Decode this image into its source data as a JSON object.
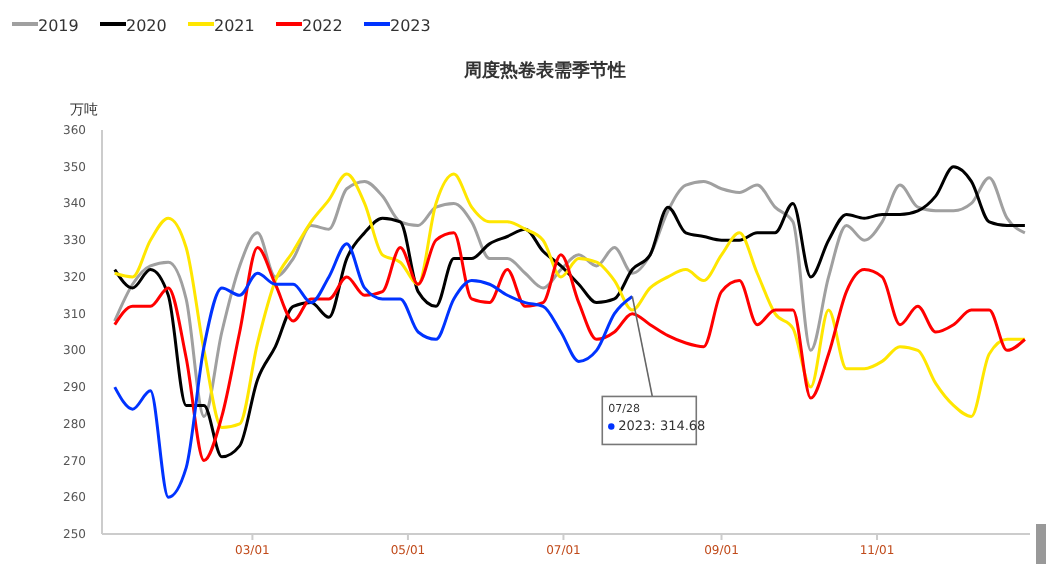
{
  "chart_data": {
    "type": "line",
    "title": "周度热卷表需季节性",
    "ylabel": "万吨",
    "x": [
      "--01-06",
      "--01-13",
      "--01-20",
      "--01-27",
      "--02-03",
      "--02-10",
      "--02-17",
      "--02-24",
      "--03-03",
      "--03-10",
      "--03-17",
      "--03-24",
      "--03-31",
      "--04-07",
      "--04-14",
      "--04-21",
      "--04-28",
      "--05-05",
      "--05-12",
      "--05-19",
      "--05-26",
      "--06-02",
      "--06-09",
      "--06-16",
      "--06-23",
      "--06-30",
      "--07-07",
      "--07-14",
      "--07-21",
      "--07-28",
      "--08-04",
      "--08-11",
      "--08-18",
      "--08-25",
      "--09-01",
      "--09-08",
      "--09-15",
      "--09-22",
      "--09-29",
      "--10-06",
      "--10-13",
      "--10-20",
      "--10-27",
      "--11-03",
      "--11-10",
      "--11-17",
      "--11-24",
      "--12-01",
      "--12-08",
      "--12-15",
      "--12-22",
      "--12-29"
    ],
    "xlim": [
      "--01-01",
      "--12-31"
    ],
    "xticks": [
      {
        "value": "--03-01",
        "label": "03/01"
      },
      {
        "value": "--05-01",
        "label": "05/01"
      },
      {
        "value": "--07-01",
        "label": "07/01"
      },
      {
        "value": "--09-01",
        "label": "09/01"
      },
      {
        "value": "--11-01",
        "label": "11/01"
      }
    ],
    "ylim": [
      250,
      360
    ],
    "yticks": [
      250,
      260,
      270,
      280,
      290,
      300,
      310,
      320,
      330,
      340,
      350,
      360
    ],
    "grid": false,
    "legend": "top left",
    "marker": "none",
    "line_style": "solid",
    "series": [
      {
        "name": "2019",
        "color": "#a0a0a0",
        "values": [
          308,
          318,
          323,
          324,
          314,
          282,
          305,
          323,
          332,
          320,
          325,
          334,
          333,
          344,
          346,
          342,
          335,
          334,
          339,
          340,
          335,
          325,
          325,
          321,
          317,
          322,
          326,
          323,
          328,
          321,
          326,
          338,
          345,
          346,
          344,
          343,
          345,
          339,
          335,
          300,
          320,
          334,
          330,
          335,
          345,
          339,
          338,
          338,
          340,
          347,
          336,
          332
        ]
      },
      {
        "name": "2020",
        "color": "#000000",
        "values": [
          322,
          317,
          322,
          315,
          285,
          285,
          271,
          274,
          292,
          301,
          312,
          313,
          309,
          325,
          332,
          336,
          335,
          316,
          312,
          325,
          325,
          329,
          331,
          333,
          327,
          323,
          318,
          313,
          314,
          322,
          326,
          339,
          332,
          331,
          330,
          330,
          332,
          332,
          340,
          320,
          330,
          337,
          336,
          337,
          337,
          338,
          342,
          350,
          346,
          335,
          334,
          334
        ]
      },
      {
        "name": "2021",
        "color": "#ffe600",
        "values": [
          321,
          320,
          330,
          336,
          328,
          300,
          279,
          280,
          302,
          319,
          327,
          335,
          341,
          348,
          340,
          326,
          324,
          318,
          340,
          348,
          339,
          335,
          335,
          333,
          330,
          320,
          325,
          324,
          319,
          311,
          317,
          320,
          322,
          319,
          326,
          332,
          321,
          310,
          306,
          290,
          311,
          295,
          295,
          297,
          301,
          300,
          291,
          285,
          282,
          299,
          303,
          303
        ]
      },
      {
        "name": "2022",
        "color": "#ff0000",
        "values": [
          307,
          312,
          312,
          317,
          298,
          270,
          282,
          305,
          328,
          318,
          308,
          314,
          314,
          320,
          315,
          316,
          328,
          318,
          330,
          332,
          314,
          313,
          322,
          312,
          313,
          326,
          313,
          303,
          305,
          310,
          307,
          304,
          302,
          301,
          316,
          319,
          307,
          311,
          311,
          287,
          299,
          316,
          322,
          320,
          307,
          312,
          305,
          307,
          311,
          311,
          300,
          303
        ]
      },
      {
        "name": "2023",
        "color": "#0033ff",
        "values": [
          290,
          284,
          289,
          260,
          268,
          301,
          317,
          315,
          321,
          318,
          318,
          313,
          320,
          329,
          317,
          314,
          314,
          305,
          303,
          314,
          319,
          318,
          315,
          313,
          312,
          305,
          297,
          300,
          310,
          314.68,
          null,
          null,
          null,
          null,
          null,
          null,
          null,
          null,
          null,
          null,
          null,
          null,
          null,
          null,
          null,
          null,
          null,
          null,
          null,
          null,
          null,
          null
        ]
      }
    ],
    "annotations": [
      {
        "text": "07/28\n2023: 314.68",
        "x": "--07-28",
        "y": 314.68
      }
    ]
  }
}
